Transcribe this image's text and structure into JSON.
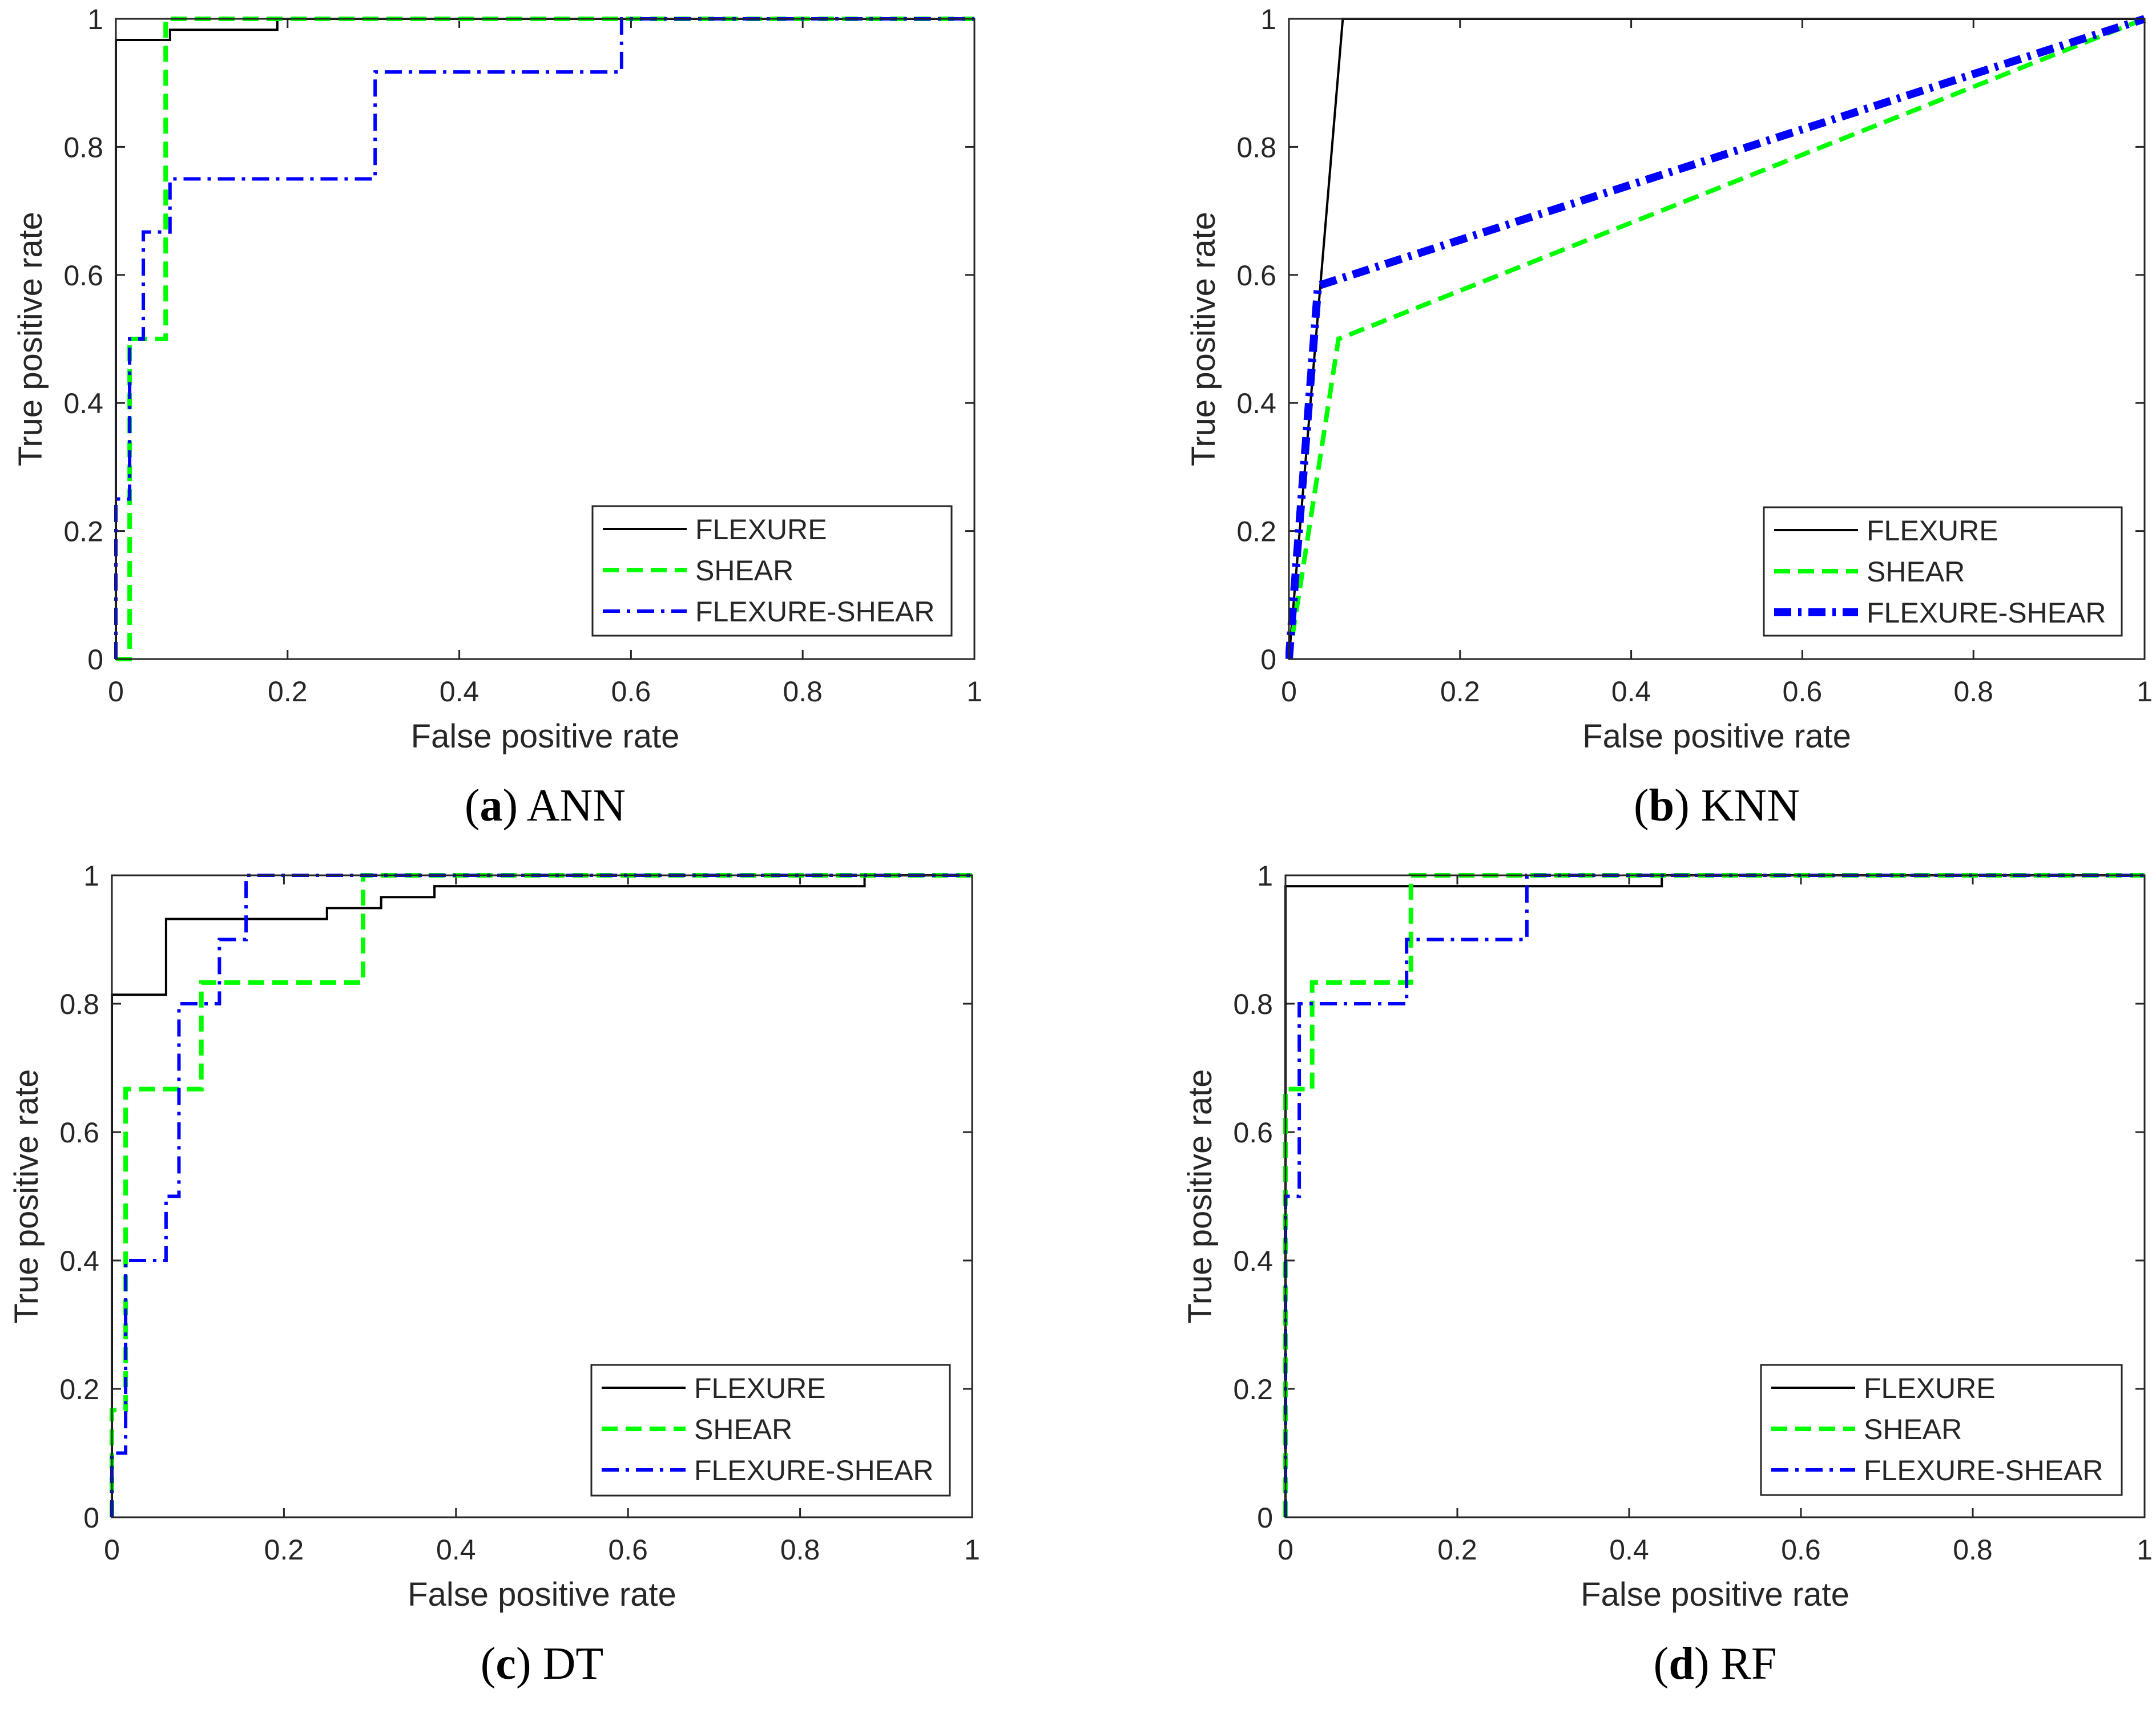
{
  "figure": {
    "background": "#ffffff",
    "axis_color": "#262626"
  },
  "legend_style": {
    "FLEXURE": {
      "color": "#000000",
      "dash": "solid"
    },
    "SHEAR": {
      "color": "#00ff00",
      "dash": "dashed"
    },
    "FLEXURE-SHEAR": {
      "color": "#0000ff",
      "dash": "dash-dot"
    }
  },
  "chart_data": [
    {
      "type": "line",
      "panel": "a",
      "caption_letter": "a",
      "caption_text": "ANN",
      "xlabel": "False positive rate",
      "ylabel": "True positive rate",
      "xlim": [
        0,
        1
      ],
      "ylim": [
        0,
        1
      ],
      "xticks": [
        "0",
        "0.2",
        "0.4",
        "0.6",
        "0.8",
        "1"
      ],
      "yticks": [
        "0",
        "0.2",
        "0.4",
        "0.6",
        "0.8",
        "1"
      ],
      "legend_position": "bottom-right",
      "series": [
        {
          "name": "FLEXURE",
          "color": "#000000",
          "style": "solid",
          "width": 4,
          "points": [
            [
              0,
              0
            ],
            [
              0,
              0.967
            ],
            [
              0.063,
              0.967
            ],
            [
              0.063,
              0.983
            ],
            [
              0.188,
              0.983
            ],
            [
              0.188,
              1
            ],
            [
              1,
              1
            ]
          ]
        },
        {
          "name": "SHEAR",
          "color": "#00ff00",
          "style": "dashed",
          "width": 8,
          "points": [
            [
              0,
              0
            ],
            [
              0.016,
              0
            ],
            [
              0.016,
              0.5
            ],
            [
              0.058,
              0.5
            ],
            [
              0.058,
              1
            ],
            [
              1,
              1
            ]
          ]
        },
        {
          "name": "FLEXURE-SHEAR",
          "color": "#0000ff",
          "style": "dash-dot",
          "width": 6,
          "points": [
            [
              0,
              0
            ],
            [
              0,
              0.25
            ],
            [
              0.016,
              0.25
            ],
            [
              0.016,
              0.5
            ],
            [
              0.032,
              0.5
            ],
            [
              0.032,
              0.667
            ],
            [
              0.063,
              0.667
            ],
            [
              0.063,
              0.75
            ],
            [
              0.302,
              0.75
            ],
            [
              0.302,
              0.917
            ],
            [
              0.589,
              0.917
            ],
            [
              0.589,
              1
            ],
            [
              1,
              1
            ]
          ]
        }
      ]
    },
    {
      "type": "line",
      "panel": "b",
      "caption_letter": "b",
      "caption_text": "KNN",
      "xlabel": "False positive rate",
      "ylabel": "True positive rate",
      "xlim": [
        0,
        1
      ],
      "ylim": [
        0,
        1
      ],
      "xticks": [
        "0",
        "0.2",
        "0.4",
        "0.6",
        "0.8",
        "1"
      ],
      "yticks": [
        "0",
        "0.2",
        "0.4",
        "0.6",
        "0.8",
        "1"
      ],
      "legend_position": "bottom-right",
      "series": [
        {
          "name": "FLEXURE",
          "color": "#000000",
          "style": "solid",
          "width": 4,
          "points": [
            [
              0,
              0
            ],
            [
              0.063,
              1
            ],
            [
              1,
              1
            ]
          ]
        },
        {
          "name": "SHEAR",
          "color": "#00ff00",
          "style": "dashed",
          "width": 8,
          "points": [
            [
              0,
              0
            ],
            [
              0.058,
              0.5
            ],
            [
              1,
              1
            ]
          ]
        },
        {
          "name": "FLEXURE-SHEAR",
          "color": "#0000ff",
          "style": "dash-dot",
          "width": 14,
          "points": [
            [
              0,
              0
            ],
            [
              0.034,
              0.583
            ],
            [
              1,
              1
            ]
          ]
        }
      ]
    },
    {
      "type": "line",
      "panel": "c",
      "caption_letter": "c",
      "caption_text": "DT",
      "xlabel": "False positive rate",
      "ylabel": "True positive rate",
      "xlim": [
        0,
        1
      ],
      "ylim": [
        0,
        1
      ],
      "xticks": [
        "0",
        "0.2",
        "0.4",
        "0.6",
        "0.8",
        "1"
      ],
      "yticks": [
        "0",
        "0.2",
        "0.4",
        "0.6",
        "0.8",
        "1"
      ],
      "legend_position": "bottom-right",
      "series": [
        {
          "name": "FLEXURE",
          "color": "#000000",
          "style": "solid",
          "width": 4,
          "points": [
            [
              0,
              0
            ],
            [
              0,
              0.814
            ],
            [
              0.063,
              0.814
            ],
            [
              0.063,
              0.932
            ],
            [
              0.25,
              0.932
            ],
            [
              0.25,
              0.949
            ],
            [
              0.313,
              0.949
            ],
            [
              0.313,
              0.966
            ],
            [
              0.375,
              0.966
            ],
            [
              0.375,
              0.983
            ],
            [
              0.875,
              0.983
            ],
            [
              0.875,
              1
            ],
            [
              1,
              1
            ]
          ]
        },
        {
          "name": "SHEAR",
          "color": "#00ff00",
          "style": "dashed",
          "width": 8,
          "points": [
            [
              0,
              0
            ],
            [
              0,
              0.167
            ],
            [
              0.016,
              0.167
            ],
            [
              0.016,
              0.667
            ],
            [
              0.104,
              0.667
            ],
            [
              0.104,
              0.833
            ],
            [
              0.292,
              0.833
            ],
            [
              0.292,
              1
            ],
            [
              1,
              1
            ]
          ]
        },
        {
          "name": "FLEXURE-SHEAR",
          "color": "#0000ff",
          "style": "dash-dot",
          "width": 6,
          "points": [
            [
              0,
              0
            ],
            [
              0,
              0.1
            ],
            [
              0.016,
              0.1
            ],
            [
              0.016,
              0.4
            ],
            [
              0.063,
              0.4
            ],
            [
              0.063,
              0.5
            ],
            [
              0.078,
              0.5
            ],
            [
              0.078,
              0.8
            ],
            [
              0.125,
              0.8
            ],
            [
              0.125,
              0.9
            ],
            [
              0.156,
              0.9
            ],
            [
              0.156,
              1
            ],
            [
              1,
              1
            ]
          ]
        }
      ]
    },
    {
      "type": "line",
      "panel": "d",
      "caption_letter": "d",
      "caption_text": "RF",
      "xlabel": "False positive rate",
      "ylabel": "True positive rate",
      "xlim": [
        0,
        1
      ],
      "ylim": [
        0,
        1
      ],
      "xticks": [
        "0",
        "0.2",
        "0.4",
        "0.6",
        "0.8",
        "1"
      ],
      "yticks": [
        "0",
        "0.2",
        "0.4",
        "0.6",
        "0.8",
        "1"
      ],
      "legend_position": "bottom-right",
      "series": [
        {
          "name": "FLEXURE",
          "color": "#000000",
          "style": "solid",
          "width": 4,
          "points": [
            [
              0,
              0
            ],
            [
              0,
              0.983
            ],
            [
              0.438,
              0.983
            ],
            [
              0.438,
              1
            ],
            [
              1,
              1
            ]
          ]
        },
        {
          "name": "SHEAR",
          "color": "#00ff00",
          "style": "dashed",
          "width": 8,
          "points": [
            [
              0,
              0
            ],
            [
              0,
              0.667
            ],
            [
              0.031,
              0.667
            ],
            [
              0.031,
              0.833
            ],
            [
              0.146,
              0.833
            ],
            [
              0.146,
              1
            ],
            [
              1,
              1
            ]
          ]
        },
        {
          "name": "FLEXURE-SHEAR",
          "color": "#0000ff",
          "style": "dash-dot",
          "width": 6,
          "points": [
            [
              0,
              0
            ],
            [
              0,
              0.5
            ],
            [
              0.016,
              0.5
            ],
            [
              0.016,
              0.8
            ],
            [
              0.141,
              0.8
            ],
            [
              0.141,
              0.9
            ],
            [
              0.281,
              0.9
            ],
            [
              0.281,
              1
            ],
            [
              1,
              1
            ]
          ]
        }
      ]
    }
  ]
}
